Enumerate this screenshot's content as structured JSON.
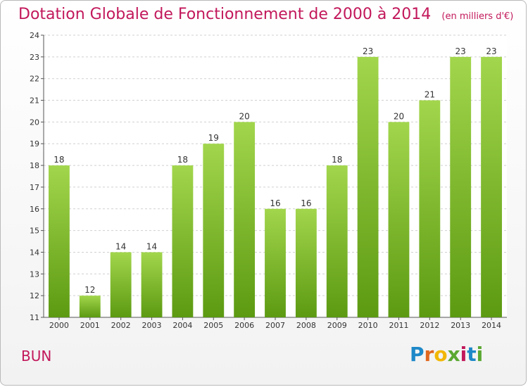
{
  "header": {
    "title": "Dotation Globale de Fonctionnement de 2000 à 2014",
    "subtitle": "(en milliers d'€)"
  },
  "footer": {
    "town": "BUN",
    "logo_letters": [
      "P",
      "r",
      "o",
      "x",
      "i",
      "t",
      "i"
    ],
    "logo_colors": [
      "#1e88c8",
      "#e0671f",
      "#f2b705",
      "#5aa832",
      "#c2185b",
      "#1e88c8",
      "#5aa832"
    ]
  },
  "colors": {
    "title": "#c2185b",
    "bar_top": "#a2d64c",
    "bar_bottom": "#5c9a12",
    "grid": "#d0d0d0"
  },
  "chart_data": {
    "type": "bar",
    "title": "Dotation Globale de Fonctionnement de 2000 à 2014",
    "subtitle": "(en milliers d'€)",
    "categories": [
      "2000",
      "2001",
      "2002",
      "2003",
      "2004",
      "2005",
      "2006",
      "2007",
      "2008",
      "2009",
      "2010",
      "2011",
      "2012",
      "2013",
      "2014"
    ],
    "values": [
      18,
      12,
      14,
      14,
      18,
      19,
      20,
      16,
      16,
      18,
      23,
      20,
      21,
      23,
      23
    ],
    "ylim": [
      11,
      24
    ],
    "yticks": [
      11,
      12,
      13,
      14,
      15,
      16,
      17,
      18,
      19,
      20,
      21,
      22,
      23,
      24
    ],
    "grid": true,
    "xlabel": "",
    "ylabel": ""
  }
}
